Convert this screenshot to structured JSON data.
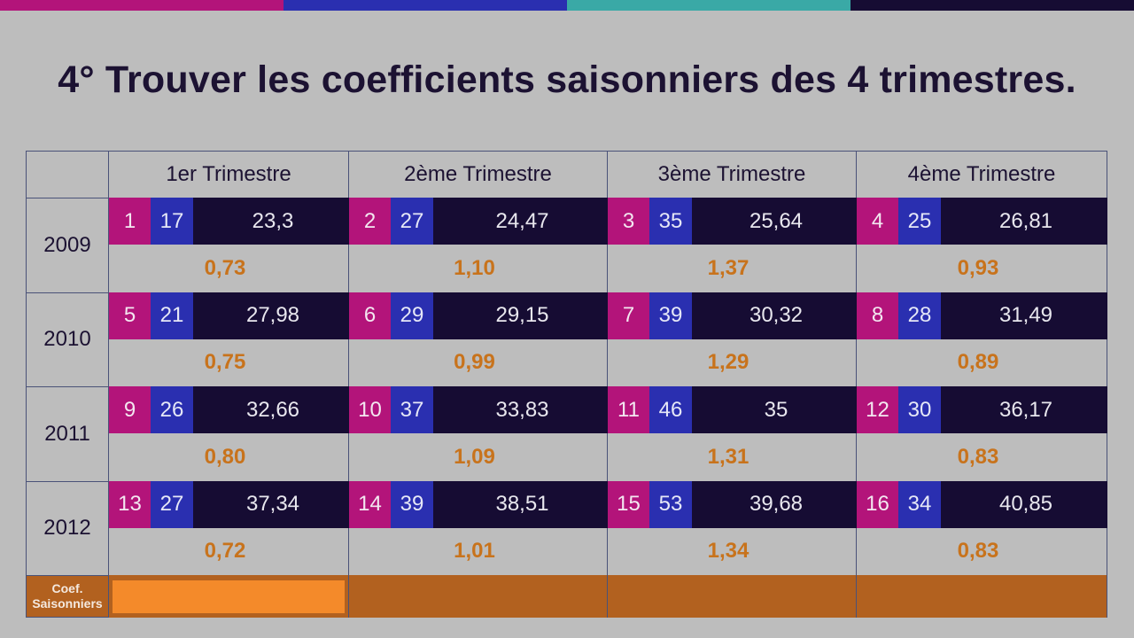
{
  "colors": {
    "top_bar": [
      "#b3147a",
      "#2a2fb0",
      "#3aa9a6",
      "#160c33"
    ],
    "index_bg": "#b3147a",
    "value_bg": "#2a2fb0",
    "row_bg": "#160c33",
    "coef_text": "#c8731c",
    "footer_bg": "#b2611f",
    "footer_input_bg": "#f48a2a"
  },
  "title": "4° Trouver les coefficients saisonniers des 4 trimestres.",
  "table": {
    "quarters": [
      "1er Trimestre",
      "2ème Trimestre",
      "3ème Trimestre",
      "4ème Trimestre"
    ],
    "years": [
      {
        "year": "2009",
        "cells": [
          {
            "index": "1",
            "value": "17",
            "trend": "23,3",
            "coef": "0,73"
          },
          {
            "index": "2",
            "value": "27",
            "trend": "24,47",
            "coef": "1,10"
          },
          {
            "index": "3",
            "value": "35",
            "trend": "25,64",
            "coef": "1,37"
          },
          {
            "index": "4",
            "value": "25",
            "trend": "26,81",
            "coef": "0,93"
          }
        ]
      },
      {
        "year": "2010",
        "cells": [
          {
            "index": "5",
            "value": "21",
            "trend": "27,98",
            "coef": "0,75"
          },
          {
            "index": "6",
            "value": "29",
            "trend": "29,15",
            "coef": "0,99"
          },
          {
            "index": "7",
            "value": "39",
            "trend": "30,32",
            "coef": "1,29"
          },
          {
            "index": "8",
            "value": "28",
            "trend": "31,49",
            "coef": "0,89"
          }
        ]
      },
      {
        "year": "2011",
        "cells": [
          {
            "index": "9",
            "value": "26",
            "trend": "32,66",
            "coef": "0,80"
          },
          {
            "index": "10",
            "value": "37",
            "trend": "33,83",
            "coef": "1,09"
          },
          {
            "index": "11",
            "value": "46",
            "trend": "35",
            "coef": "1,31"
          },
          {
            "index": "12",
            "value": "30",
            "trend": "36,17",
            "coef": "0,83"
          }
        ]
      },
      {
        "year": "2012",
        "cells": [
          {
            "index": "13",
            "value": "27",
            "trend": "37,34",
            "coef": "0,72"
          },
          {
            "index": "14",
            "value": "39",
            "trend": "38,51",
            "coef": "1,01"
          },
          {
            "index": "15",
            "value": "53",
            "trend": "39,68",
            "coef": "1,34"
          },
          {
            "index": "16",
            "value": "34",
            "trend": "40,85",
            "coef": "0,83"
          }
        ]
      }
    ],
    "footer_label_line1": "Coef.",
    "footer_label_line2": "Saisonniers"
  }
}
